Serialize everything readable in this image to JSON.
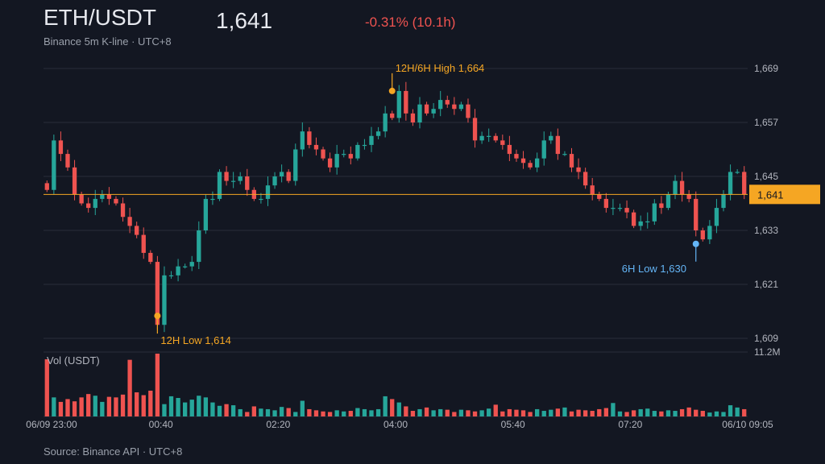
{
  "header": {
    "pair": "ETH/USDT",
    "price": "1,641",
    "change": "-0.31% (10.1h)",
    "subtitle": "Binance 5m K-line · UTC+8"
  },
  "footer": {
    "source": "Source: Binance API · UTC+8"
  },
  "colors": {
    "up": "#26a69a",
    "down": "#ef5350",
    "accent": "#f5a623",
    "low6h": "#64b5f6",
    "grid": "#2a2e39",
    "bg": "#131722"
  },
  "chart_data": {
    "type": "candlestick",
    "price_ticks": [
      "1,669",
      "1,657",
      "1,645",
      "1,633",
      "1,621",
      "1,609"
    ],
    "price_tick_values": [
      1669,
      1657,
      1645,
      1633,
      1621,
      1609
    ],
    "ylim": [
      1609,
      1669
    ],
    "x_ticks": [
      "06/09 23:00",
      "00:40",
      "02:20",
      "04:00",
      "05:40",
      "07:20",
      "06/10 09:05"
    ],
    "volume_label": "Vol (USDT)",
    "volume_max_label": "11.2M",
    "volume_max": 11.2,
    "last_price": 1641,
    "last_price_label": "1,641",
    "annotations": [
      {
        "text": "12H/6H High 1,664",
        "index": 50,
        "price": 1664,
        "position": "above"
      },
      {
        "text": "12H Low 1,614",
        "index": 16,
        "price": 1614,
        "position": "below"
      },
      {
        "text": "6H Low 1,630",
        "index": 94,
        "price": 1630,
        "position": "below"
      }
    ],
    "closes": [
      1642,
      1653,
      1650,
      1647,
      1641,
      1639,
      1638,
      1640,
      1641,
      1640,
      1639,
      1636,
      1634,
      1632,
      1628,
      1626,
      1612,
      1623,
      1623,
      1625,
      1625,
      1626,
      1633,
      1640,
      1640,
      1646,
      1644,
      1644,
      1645,
      1642,
      1640,
      1640,
      1643,
      1645,
      1646,
      1644,
      1651,
      1655,
      1652,
      1651,
      1649,
      1647,
      1650,
      1650,
      1649,
      1652,
      1652,
      1654,
      1655,
      1659,
      1658,
      1664,
      1659,
      1657,
      1661,
      1659,
      1660,
      1662,
      1661,
      1660,
      1661,
      1658,
      1653,
      1654,
      1654,
      1653,
      1652,
      1650,
      1649,
      1648,
      1647,
      1649,
      1653,
      1654,
      1650,
      1650,
      1647,
      1646,
      1643,
      1641,
      1640,
      1638,
      1638,
      1638,
      1637,
      1634,
      1635,
      1635,
      1639,
      1638,
      1641,
      1644,
      1641,
      1640,
      1633,
      1631,
      1634,
      1638,
      1641,
      1646,
      1646,
      1641
    ],
    "volumes": [
      10.2,
      3.4,
      2.6,
      3.1,
      2.7,
      3.4,
      4.0,
      3.7,
      2.6,
      3.5,
      3.4,
      3.9,
      10.1,
      4.3,
      3.8,
      4.6,
      11.2,
      2.2,
      3.6,
      3.3,
      2.5,
      3.0,
      3.7,
      3.4,
      2.5,
      1.9,
      2.2,
      2.0,
      1.3,
      0.8,
      1.8,
      1.4,
      1.3,
      1.1,
      1.7,
      1.5,
      0.8,
      2.8,
      1.3,
      1.1,
      0.9,
      0.8,
      1.1,
      0.9,
      1.0,
      1.5,
      1.3,
      1.1,
      1.3,
      3.6,
      3.1,
      2.5,
      1.8,
      1.0,
      1.3,
      1.6,
      1.1,
      1.3,
      1.2,
      0.8,
      1.2,
      1.1,
      0.9,
      1.1,
      1.4,
      2.1,
      0.9,
      1.3,
      1.2,
      1.1,
      0.8,
      1.3,
      1.0,
      1.2,
      1.4,
      1.6,
      0.9,
      1.2,
      1.1,
      1.0,
      1.3,
      1.5,
      2.4,
      0.9,
      0.8,
      1.1,
      1.3,
      1.4,
      1.0,
      0.9,
      1.1,
      1.0,
      1.3,
      1.6,
      1.2,
      1.0,
      0.7,
      0.9,
      0.8,
      2.0,
      1.6,
      1.3
    ]
  }
}
